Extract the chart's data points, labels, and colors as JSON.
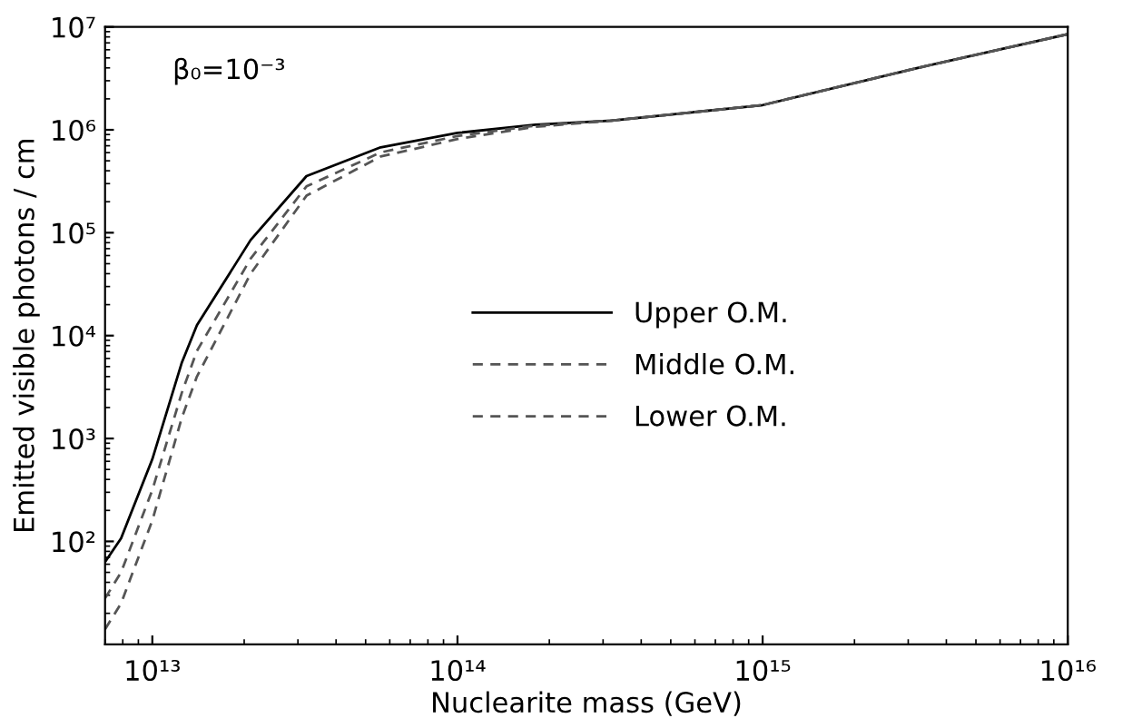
{
  "chart_data": {
    "type": "line",
    "xlabel": "Nuclearite mass (GeV)",
    "ylabel": "Emitted visible photons / cm",
    "annotations": [
      "β₀=10⁻³"
    ],
    "log": "xy",
    "grid": false,
    "legend": "center",
    "marker": "none",
    "xlim": [
      7000000000000.0,
      1e+16
    ],
    "ylim": [
      10,
      10000000.0
    ],
    "xticks": [
      {
        "value": 10000000000000.0,
        "label": "10¹³"
      },
      {
        "value": 100000000000000.0,
        "label": "10¹⁴"
      },
      {
        "value": 1000000000000000.0,
        "label": "10¹⁵"
      },
      {
        "value": 1e+16,
        "label": "10¹⁶"
      }
    ],
    "yticks": [
      {
        "value": 100,
        "label": "10²"
      },
      {
        "value": 1000,
        "label": "10³"
      },
      {
        "value": 10000,
        "label": "10⁴"
      },
      {
        "value": 100000,
        "label": "10⁵"
      },
      {
        "value": 1000000,
        "label": "10⁶"
      },
      {
        "value": 10000000,
        "label": "10⁷"
      }
    ],
    "x": [
      7000000000000.0,
      7900000000000.0,
      10000000000000.0,
      12500000000000.0,
      14000000000000.0,
      21000000000000.0,
      32000000000000.0,
      56000000000000.0,
      100000000000000.0,
      180000000000000.0,
      320000000000000.0,
      790000000000000.0,
      1000000000000000.0,
      3200000000000000.0,
      1e+16
    ],
    "series": [
      {
        "name": "Upper O.M.",
        "color": "#000000",
        "line_style": "solid",
        "values": [
          63,
          107,
          630,
          5500,
          12600,
          85000,
          355000,
          676000,
          933000,
          1120000,
          1230000,
          1620000,
          1740000,
          3980000,
          8500000
        ]
      },
      {
        "name": "Middle O.M.",
        "color": "#555555",
        "line_style": "dashed",
        "values": [
          28,
          50,
          316,
          2800,
          7100,
          56000,
          282000,
          603000,
          871000,
          1100000,
          1230000,
          1620000,
          1740000,
          3980000,
          8500000
        ]
      },
      {
        "name": "Lower O.M.",
        "color": "#555555",
        "line_style": "dashed",
        "values": [
          14,
          25,
          160,
          1600,
          4000,
          40000,
          229000,
          550000,
          813000,
          1070000,
          1230000,
          1620000,
          1740000,
          3980000,
          8500000
        ]
      }
    ]
  }
}
